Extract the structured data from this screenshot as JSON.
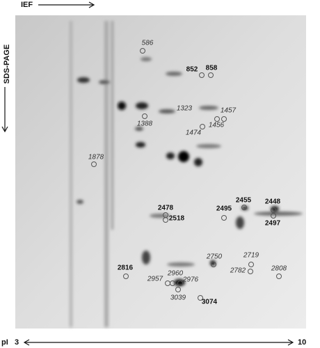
{
  "axis": {
    "ief": "IEF",
    "sds": "SDS-PAGE",
    "pi": "pI",
    "pi_min": "3",
    "pi_max": "10"
  },
  "spots": [
    {
      "label": "586"
    },
    {
      "label": "852"
    },
    {
      "label": "858"
    },
    {
      "label": "1323"
    },
    {
      "label": "1457"
    },
    {
      "label": "1388"
    },
    {
      "label": "1456"
    },
    {
      "label": "1474"
    },
    {
      "label": "1878"
    },
    {
      "label": "2478"
    },
    {
      "label": "2518"
    },
    {
      "label": "2495"
    },
    {
      "label": "2455"
    },
    {
      "label": "2448"
    },
    {
      "label": "2497"
    },
    {
      "label": "2750"
    },
    {
      "label": "2719"
    },
    {
      "label": "2816"
    },
    {
      "label": "2782"
    },
    {
      "label": "2808"
    },
    {
      "label": "2957"
    },
    {
      "label": "2960"
    },
    {
      "label": "2976"
    },
    {
      "label": "3039"
    },
    {
      "label": "3074"
    }
  ]
}
